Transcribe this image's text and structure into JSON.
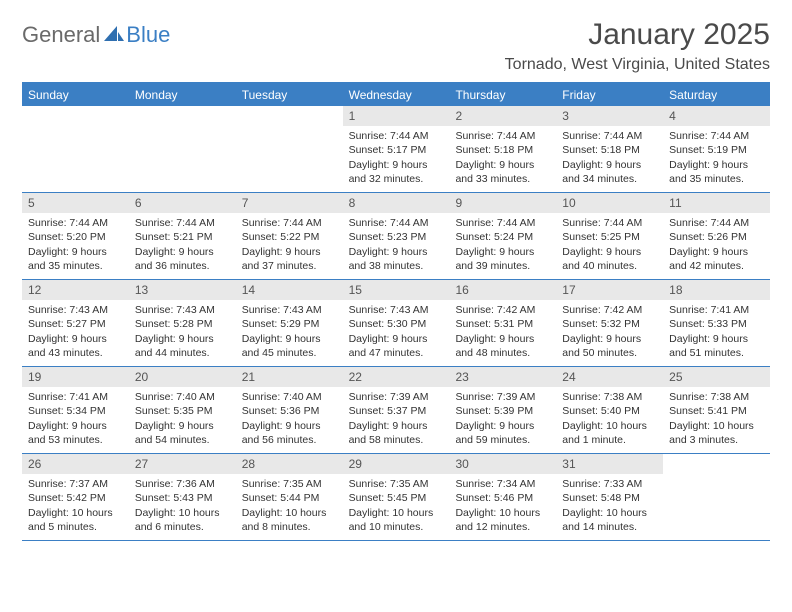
{
  "brand": {
    "word1": "General",
    "word2": "Blue"
  },
  "title": "January 2025",
  "location": "Tornado, West Virginia, United States",
  "day_headers": [
    "Sunday",
    "Monday",
    "Tuesday",
    "Wednesday",
    "Thursday",
    "Friday",
    "Saturday"
  ],
  "colors": {
    "accent": "#3b7fc4",
    "header_text": "#ffffff",
    "daynum_bg": "#e8e8e8",
    "text": "#333333",
    "logo_gray": "#6a6a6a"
  },
  "weeks": [
    [
      {
        "empty": true
      },
      {
        "empty": true
      },
      {
        "empty": true
      },
      {
        "day": "1",
        "sunrise": "Sunrise: 7:44 AM",
        "sunset": "Sunset: 5:17 PM",
        "daylight1": "Daylight: 9 hours",
        "daylight2": "and 32 minutes."
      },
      {
        "day": "2",
        "sunrise": "Sunrise: 7:44 AM",
        "sunset": "Sunset: 5:18 PM",
        "daylight1": "Daylight: 9 hours",
        "daylight2": "and 33 minutes."
      },
      {
        "day": "3",
        "sunrise": "Sunrise: 7:44 AM",
        "sunset": "Sunset: 5:18 PM",
        "daylight1": "Daylight: 9 hours",
        "daylight2": "and 34 minutes."
      },
      {
        "day": "4",
        "sunrise": "Sunrise: 7:44 AM",
        "sunset": "Sunset: 5:19 PM",
        "daylight1": "Daylight: 9 hours",
        "daylight2": "and 35 minutes."
      }
    ],
    [
      {
        "day": "5",
        "sunrise": "Sunrise: 7:44 AM",
        "sunset": "Sunset: 5:20 PM",
        "daylight1": "Daylight: 9 hours",
        "daylight2": "and 35 minutes."
      },
      {
        "day": "6",
        "sunrise": "Sunrise: 7:44 AM",
        "sunset": "Sunset: 5:21 PM",
        "daylight1": "Daylight: 9 hours",
        "daylight2": "and 36 minutes."
      },
      {
        "day": "7",
        "sunrise": "Sunrise: 7:44 AM",
        "sunset": "Sunset: 5:22 PM",
        "daylight1": "Daylight: 9 hours",
        "daylight2": "and 37 minutes."
      },
      {
        "day": "8",
        "sunrise": "Sunrise: 7:44 AM",
        "sunset": "Sunset: 5:23 PM",
        "daylight1": "Daylight: 9 hours",
        "daylight2": "and 38 minutes."
      },
      {
        "day": "9",
        "sunrise": "Sunrise: 7:44 AM",
        "sunset": "Sunset: 5:24 PM",
        "daylight1": "Daylight: 9 hours",
        "daylight2": "and 39 minutes."
      },
      {
        "day": "10",
        "sunrise": "Sunrise: 7:44 AM",
        "sunset": "Sunset: 5:25 PM",
        "daylight1": "Daylight: 9 hours",
        "daylight2": "and 40 minutes."
      },
      {
        "day": "11",
        "sunrise": "Sunrise: 7:44 AM",
        "sunset": "Sunset: 5:26 PM",
        "daylight1": "Daylight: 9 hours",
        "daylight2": "and 42 minutes."
      }
    ],
    [
      {
        "day": "12",
        "sunrise": "Sunrise: 7:43 AM",
        "sunset": "Sunset: 5:27 PM",
        "daylight1": "Daylight: 9 hours",
        "daylight2": "and 43 minutes."
      },
      {
        "day": "13",
        "sunrise": "Sunrise: 7:43 AM",
        "sunset": "Sunset: 5:28 PM",
        "daylight1": "Daylight: 9 hours",
        "daylight2": "and 44 minutes."
      },
      {
        "day": "14",
        "sunrise": "Sunrise: 7:43 AM",
        "sunset": "Sunset: 5:29 PM",
        "daylight1": "Daylight: 9 hours",
        "daylight2": "and 45 minutes."
      },
      {
        "day": "15",
        "sunrise": "Sunrise: 7:43 AM",
        "sunset": "Sunset: 5:30 PM",
        "daylight1": "Daylight: 9 hours",
        "daylight2": "and 47 minutes."
      },
      {
        "day": "16",
        "sunrise": "Sunrise: 7:42 AM",
        "sunset": "Sunset: 5:31 PM",
        "daylight1": "Daylight: 9 hours",
        "daylight2": "and 48 minutes."
      },
      {
        "day": "17",
        "sunrise": "Sunrise: 7:42 AM",
        "sunset": "Sunset: 5:32 PM",
        "daylight1": "Daylight: 9 hours",
        "daylight2": "and 50 minutes."
      },
      {
        "day": "18",
        "sunrise": "Sunrise: 7:41 AM",
        "sunset": "Sunset: 5:33 PM",
        "daylight1": "Daylight: 9 hours",
        "daylight2": "and 51 minutes."
      }
    ],
    [
      {
        "day": "19",
        "sunrise": "Sunrise: 7:41 AM",
        "sunset": "Sunset: 5:34 PM",
        "daylight1": "Daylight: 9 hours",
        "daylight2": "and 53 minutes."
      },
      {
        "day": "20",
        "sunrise": "Sunrise: 7:40 AM",
        "sunset": "Sunset: 5:35 PM",
        "daylight1": "Daylight: 9 hours",
        "daylight2": "and 54 minutes."
      },
      {
        "day": "21",
        "sunrise": "Sunrise: 7:40 AM",
        "sunset": "Sunset: 5:36 PM",
        "daylight1": "Daylight: 9 hours",
        "daylight2": "and 56 minutes."
      },
      {
        "day": "22",
        "sunrise": "Sunrise: 7:39 AM",
        "sunset": "Sunset: 5:37 PM",
        "daylight1": "Daylight: 9 hours",
        "daylight2": "and 58 minutes."
      },
      {
        "day": "23",
        "sunrise": "Sunrise: 7:39 AM",
        "sunset": "Sunset: 5:39 PM",
        "daylight1": "Daylight: 9 hours",
        "daylight2": "and 59 minutes."
      },
      {
        "day": "24",
        "sunrise": "Sunrise: 7:38 AM",
        "sunset": "Sunset: 5:40 PM",
        "daylight1": "Daylight: 10 hours",
        "daylight2": "and 1 minute."
      },
      {
        "day": "25",
        "sunrise": "Sunrise: 7:38 AM",
        "sunset": "Sunset: 5:41 PM",
        "daylight1": "Daylight: 10 hours",
        "daylight2": "and 3 minutes."
      }
    ],
    [
      {
        "day": "26",
        "sunrise": "Sunrise: 7:37 AM",
        "sunset": "Sunset: 5:42 PM",
        "daylight1": "Daylight: 10 hours",
        "daylight2": "and 5 minutes."
      },
      {
        "day": "27",
        "sunrise": "Sunrise: 7:36 AM",
        "sunset": "Sunset: 5:43 PM",
        "daylight1": "Daylight: 10 hours",
        "daylight2": "and 6 minutes."
      },
      {
        "day": "28",
        "sunrise": "Sunrise: 7:35 AM",
        "sunset": "Sunset: 5:44 PM",
        "daylight1": "Daylight: 10 hours",
        "daylight2": "and 8 minutes."
      },
      {
        "day": "29",
        "sunrise": "Sunrise: 7:35 AM",
        "sunset": "Sunset: 5:45 PM",
        "daylight1": "Daylight: 10 hours",
        "daylight2": "and 10 minutes."
      },
      {
        "day": "30",
        "sunrise": "Sunrise: 7:34 AM",
        "sunset": "Sunset: 5:46 PM",
        "daylight1": "Daylight: 10 hours",
        "daylight2": "and 12 minutes."
      },
      {
        "day": "31",
        "sunrise": "Sunrise: 7:33 AM",
        "sunset": "Sunset: 5:48 PM",
        "daylight1": "Daylight: 10 hours",
        "daylight2": "and 14 minutes."
      },
      {
        "empty": true
      }
    ]
  ]
}
